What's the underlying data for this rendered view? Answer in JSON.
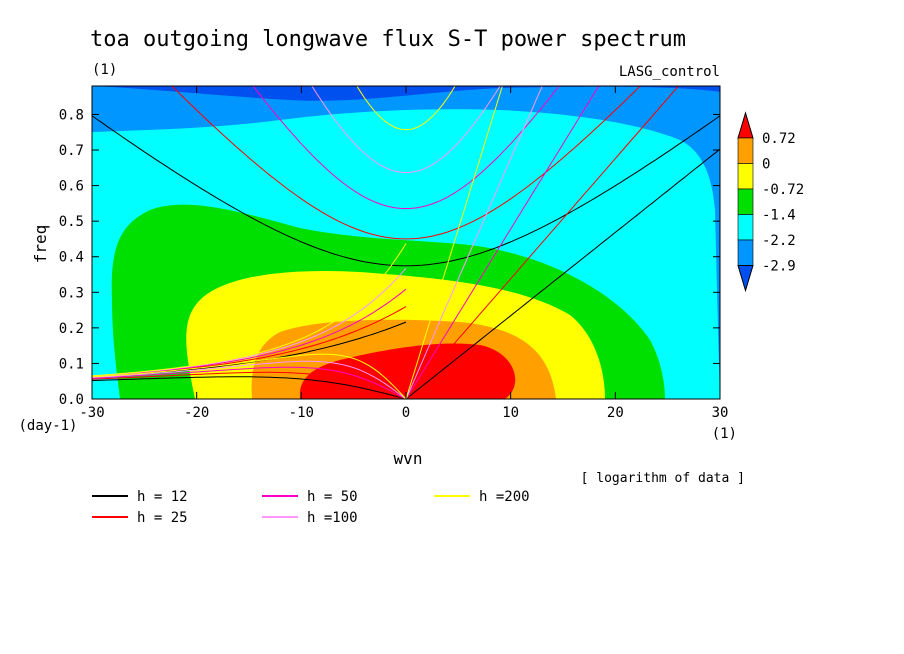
{
  "chart_data": {
    "type": "heatmap",
    "title": "toa outgoing longwave flux S-T power spectrum",
    "title_units": "(1)",
    "case_label": "LASG_control",
    "xlabel": "wvn",
    "ylabel": "freq",
    "x_units": "(1)",
    "y_units": "(day-1)",
    "note": "[ logarithm of data ]",
    "xlim": [
      -30,
      30
    ],
    "ylim": [
      0,
      0.88
    ],
    "xticks": [
      "-30",
      "-20",
      "-10",
      "0",
      "10",
      "20",
      "30"
    ],
    "xtick_values": [
      -30,
      -20,
      -10,
      0,
      10,
      20,
      30
    ],
    "yticks": [
      "0.0",
      "0.1",
      "0.2",
      "0.3",
      "0.4",
      "0.5",
      "0.6",
      "0.7",
      "0.8"
    ],
    "ytick_values": [
      0,
      0.1,
      0.2,
      0.3,
      0.4,
      0.5,
      0.6,
      0.7,
      0.8
    ],
    "colorbar": {
      "levels": [
        "0.72",
        "0",
        "-0.72",
        "-1.4",
        "-2.2",
        "-2.9"
      ],
      "level_values": [
        0.72,
        0,
        -0.72,
        -1.4,
        -2.2,
        -2.9
      ],
      "colors": [
        "#0050f0",
        "#0096ff",
        "#00ffff",
        "#00e000",
        "#ffff00",
        "#ffa000",
        "#ff0000"
      ]
    },
    "dispersion_curves": [
      {
        "name": "h = 12",
        "value": 12,
        "color": "#000000"
      },
      {
        "name": "h = 25",
        "value": 25,
        "color": "#ff0000"
      },
      {
        "name": "h = 50",
        "value": 50,
        "color": "#ff00c8"
      },
      {
        "name": "h =100",
        "value": 100,
        "color": "#ff96ff"
      },
      {
        "name": "h =200",
        "value": 200,
        "color": "#ffff00"
      }
    ]
  }
}
